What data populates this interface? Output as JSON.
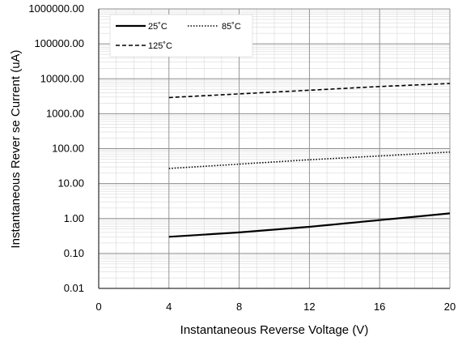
{
  "chart_data": {
    "type": "line",
    "xlabel": "Instantaneous  Reverse Voltage (V)",
    "ylabel": "Instantaneous Rever se Current (uA)",
    "xlim": [
      0,
      20
    ],
    "ylim": [
      0.01,
      1000000
    ],
    "yscale": "log",
    "x_ticks": [
      "0",
      "4",
      "8",
      "12",
      "16",
      "20"
    ],
    "y_ticks": [
      "0.01",
      "0.10",
      "1.00",
      "10.00",
      "100.00",
      "1000.00",
      "10000.00",
      "100000.00",
      "1000000.00"
    ],
    "grid": true,
    "legend_position": "top-left",
    "series": [
      {
        "name": "25˚C",
        "style": "solid",
        "x": [
          4,
          8,
          12,
          16,
          20
        ],
        "y": [
          0.3,
          0.4,
          0.58,
          0.9,
          1.4
        ]
      },
      {
        "name": "85˚C",
        "style": "dotted",
        "x": [
          4,
          8,
          12,
          16,
          20
        ],
        "y": [
          27,
          36,
          48,
          62,
          80
        ]
      },
      {
        "name": "125˚C",
        "style": "dashed",
        "x": [
          4,
          8,
          12,
          16,
          20
        ],
        "y": [
          2900,
          3700,
          4700,
          6000,
          7300
        ]
      }
    ]
  }
}
